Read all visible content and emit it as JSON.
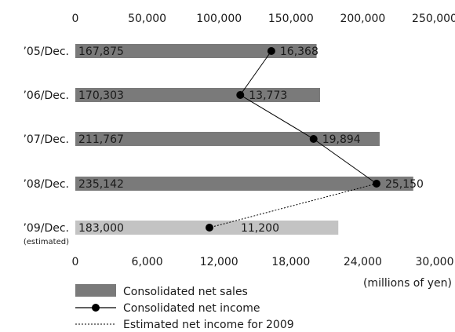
{
  "chart_data": {
    "type": "bar",
    "categories": [
      "’05/Dec.",
      "’06/Dec.",
      "’07/Dec.",
      "’08/Dec.",
      "’09/Dec."
    ],
    "category_notes": [
      "",
      "",
      "",
      "",
      "(estimated)"
    ],
    "unit": "(millions of yen)",
    "sales_axis": {
      "range": [
        0,
        250000
      ],
      "ticks": [
        "0",
        "50,000",
        "100,000",
        "150,000",
        "200,000",
        "250,000"
      ],
      "position": "top"
    },
    "income_axis": {
      "range": [
        0,
        30000
      ],
      "ticks": [
        "0",
        "6,000",
        "12,000",
        "18,000",
        "24,000",
        "30,000"
      ],
      "position": "bottom"
    },
    "series": [
      {
        "name": "Consolidated net sales",
        "kind": "bar",
        "values": [
          167875,
          170303,
          211767,
          235142,
          183000
        ],
        "labels": [
          "167,875",
          "170,303",
          "211,767",
          "235,142",
          "183,000"
        ],
        "estimated_index": 4
      },
      {
        "name": "Consolidated net income",
        "kind": "line",
        "values": [
          16368,
          13773,
          19894,
          25150,
          11200
        ],
        "labels": [
          "16,368",
          "13,773",
          "19,894",
          "25,150",
          "11,200"
        ],
        "estimated_index": 4
      }
    ],
    "estimated_line_label": "Estimated net income for 2009",
    "grid": false,
    "legend_position": "bottom-left"
  },
  "colors": {
    "bar": "#7a7a7a",
    "bar_estimated": "#c3c3c3",
    "line": "#000000",
    "text": "#1a1a1a"
  }
}
